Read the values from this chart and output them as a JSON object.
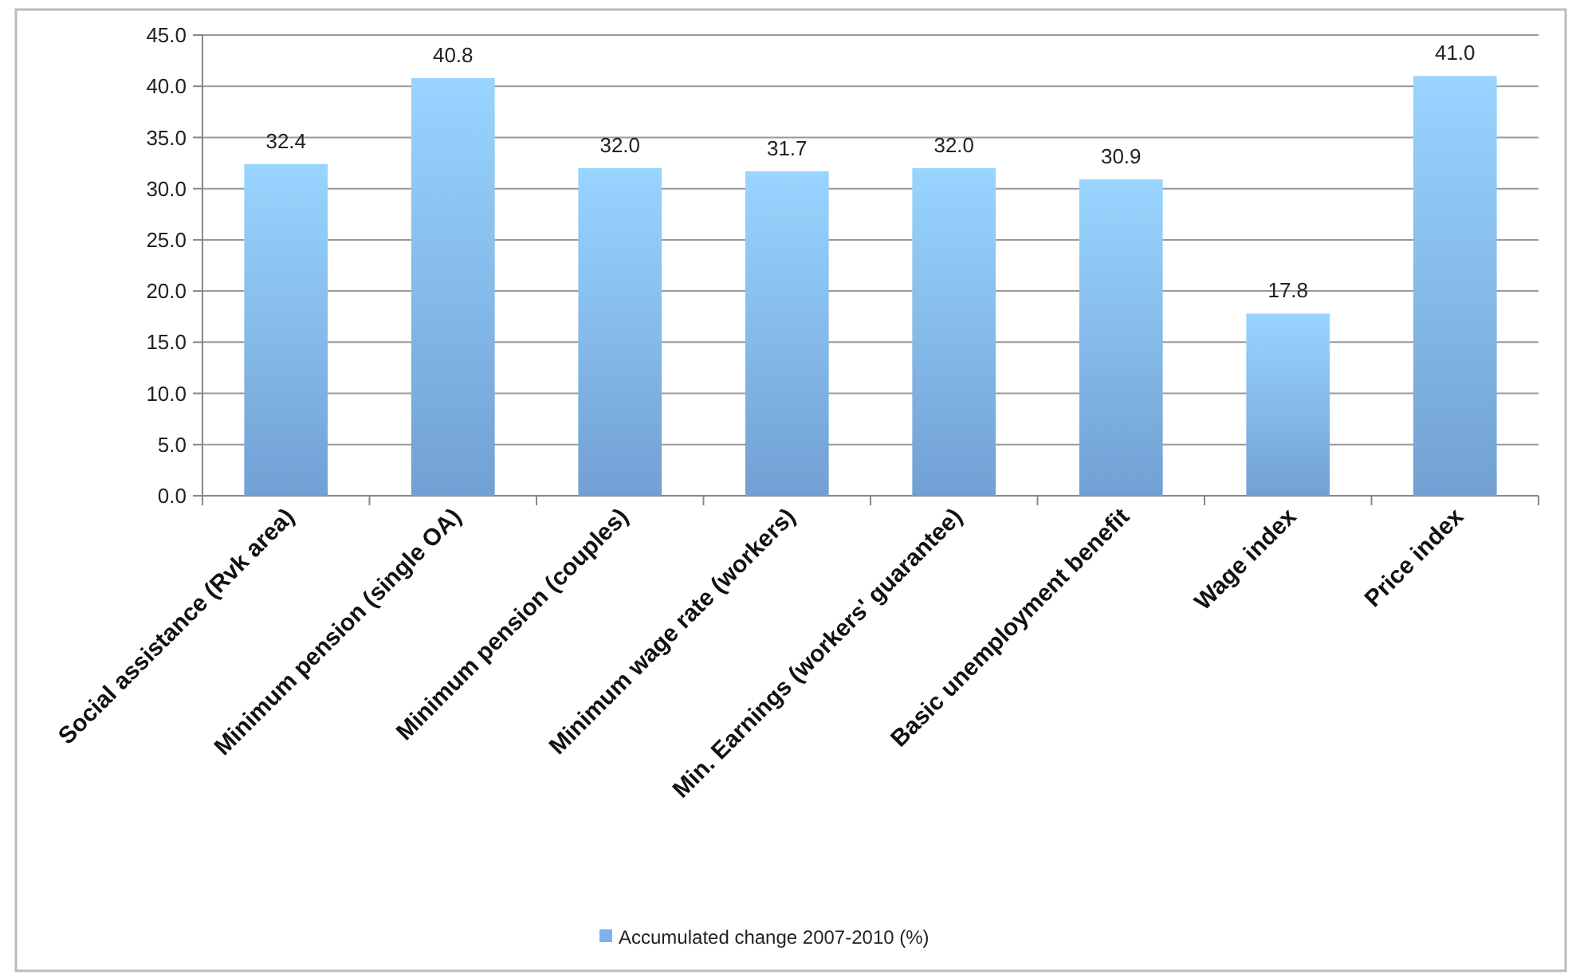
{
  "chart_data": {
    "type": "bar",
    "categories": [
      "Social assistance (Rvk area)",
      "Minimum pension (single OA)",
      "Minimum pension (couples)",
      "Minimum wage rate (workers)",
      "Min. Earnings (workers' guarantee)",
      "Basic unemployment benefit",
      "Wage index",
      "Price index"
    ],
    "series": [
      {
        "name": "Accumulated change 2007-2010 (%)",
        "color": "#7fb2ec",
        "values": [
          32.4,
          40.8,
          32.0,
          31.7,
          32.0,
          30.9,
          17.8,
          41.0
        ],
        "value_labels": [
          "32.4",
          "40.8",
          "32.0",
          "31.7",
          "32.0",
          "30.9",
          "17.8",
          "41.0"
        ]
      }
    ],
    "ylim": [
      0,
      45
    ],
    "yticks": [
      {
        "value": 0,
        "label": "0.0"
      },
      {
        "value": 5,
        "label": "5.0"
      },
      {
        "value": 10,
        "label": "10.0"
      },
      {
        "value": 15,
        "label": "15.0"
      },
      {
        "value": 20,
        "label": "20.0"
      },
      {
        "value": 25,
        "label": "25.0"
      },
      {
        "value": 30,
        "label": "30.0"
      },
      {
        "value": 35,
        "label": "35.0"
      },
      {
        "value": 40,
        "label": "40.0"
      },
      {
        "value": 45,
        "label": "45.0"
      }
    ],
    "grid": "y",
    "legend": "bottom"
  }
}
